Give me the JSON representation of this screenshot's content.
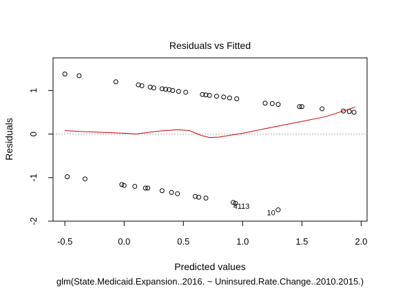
{
  "chart_data": {
    "type": "scatter",
    "title": "Residuals vs Fitted",
    "xlabel": "Predicted values",
    "ylabel": "Residuals",
    "subtitle": "glm(State.Medicaid.Expansion..2016. ~ Uninsured.Rate.Change..2010.2015.)",
    "xlim": [
      -0.6,
      2.05
    ],
    "ylim": [
      -2.0,
      1.75
    ],
    "xticks": [
      -0.5,
      0.0,
      0.5,
      1.0,
      1.5,
      2.0
    ],
    "xtick_labels": [
      "-0.5",
      "0.0",
      "0.5",
      "1.0",
      "1.5",
      "2.0"
    ],
    "yticks": [
      -2,
      -1,
      0,
      1
    ],
    "ytick_labels": [
      "-2",
      "-1",
      "0",
      "1"
    ],
    "points": [
      [
        -0.5,
        1.38
      ],
      [
        -0.38,
        1.34
      ],
      [
        -0.07,
        1.2
      ],
      [
        0.12,
        1.13
      ],
      [
        0.15,
        1.11
      ],
      [
        0.22,
        1.08
      ],
      [
        0.25,
        1.06
      ],
      [
        0.32,
        1.04
      ],
      [
        0.35,
        1.03
      ],
      [
        0.38,
        1.02
      ],
      [
        0.41,
        1.0
      ],
      [
        0.46,
        0.98
      ],
      [
        0.52,
        0.96
      ],
      [
        0.66,
        0.91
      ],
      [
        0.69,
        0.9
      ],
      [
        0.72,
        0.89
      ],
      [
        0.78,
        0.87
      ],
      [
        0.84,
        0.85
      ],
      [
        0.89,
        0.83
      ],
      [
        0.95,
        0.81
      ],
      [
        1.19,
        0.71
      ],
      [
        1.25,
        0.7
      ],
      [
        1.3,
        0.68
      ],
      [
        1.48,
        0.63
      ],
      [
        1.5,
        0.63
      ],
      [
        1.67,
        0.58
      ],
      [
        1.85,
        0.53
      ],
      [
        1.9,
        0.52
      ],
      [
        1.94,
        0.5
      ],
      [
        -0.48,
        -0.98
      ],
      [
        -0.33,
        -1.03
      ],
      [
        -0.02,
        -1.16
      ],
      [
        0.0,
        -1.18
      ],
      [
        0.09,
        -1.2
      ],
      [
        0.18,
        -1.24
      ],
      [
        0.2,
        -1.24
      ],
      [
        0.32,
        -1.3
      ],
      [
        0.4,
        -1.34
      ],
      [
        0.45,
        -1.37
      ],
      [
        0.6,
        -1.43
      ],
      [
        0.63,
        -1.45
      ],
      [
        0.69,
        -1.47
      ],
      [
        0.92,
        -1.57
      ],
      [
        0.94,
        -1.59
      ],
      [
        1.3,
        -1.74
      ]
    ],
    "smoother": [
      [
        -0.5,
        0.08
      ],
      [
        -0.38,
        0.06
      ],
      [
        0.0,
        0.02
      ],
      [
        0.1,
        0.0
      ],
      [
        0.2,
        0.04
      ],
      [
        0.3,
        0.07
      ],
      [
        0.45,
        0.1
      ],
      [
        0.55,
        0.08
      ],
      [
        0.65,
        -0.03
      ],
      [
        0.72,
        -0.08
      ],
      [
        0.8,
        -0.07
      ],
      [
        1.0,
        0.02
      ],
      [
        1.2,
        0.13
      ],
      [
        1.5,
        0.29
      ],
      [
        1.7,
        0.4
      ],
      [
        1.95,
        0.62
      ]
    ],
    "annotations": [
      {
        "text": "4113",
        "x": 0.99,
        "y": -1.65
      },
      {
        "text": "10",
        "x": 1.24,
        "y": -1.8
      }
    ],
    "colors": {
      "points": "#000000",
      "smoother": "#cc0000",
      "zero_line": "#aaaaaa"
    }
  }
}
